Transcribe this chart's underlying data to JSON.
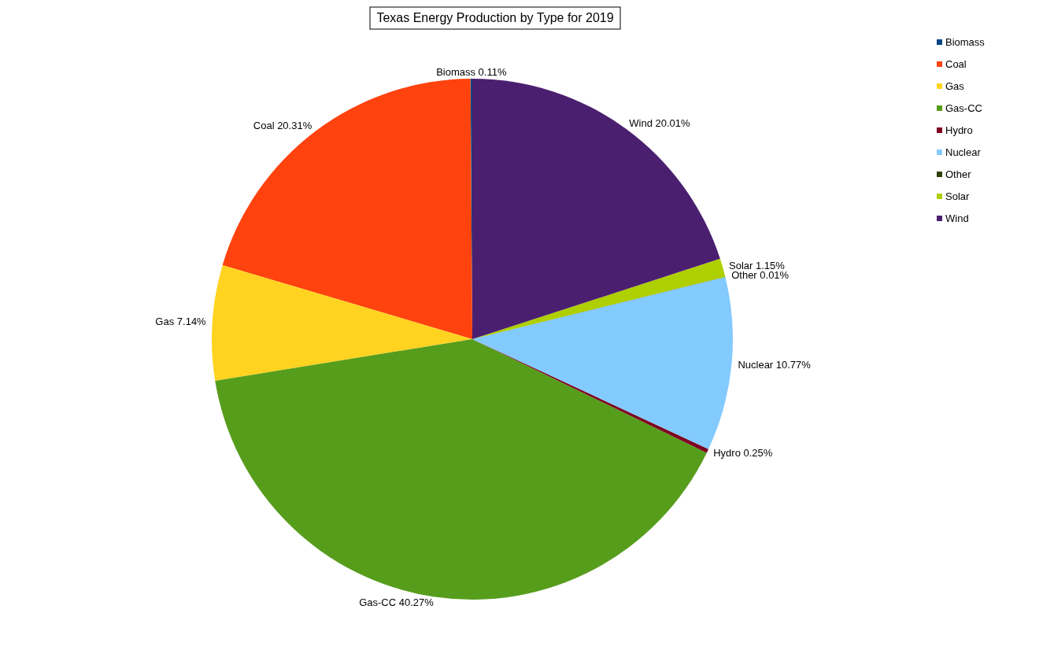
{
  "chart_data": {
    "type": "pie",
    "title": "Texas Energy Production by Type for 2019",
    "categories": [
      "Biomass",
      "Coal",
      "Gas",
      "Gas-CC",
      "Hydro",
      "Nuclear",
      "Other",
      "Solar",
      "Wind"
    ],
    "values": [
      0.11,
      20.31,
      7.14,
      40.27,
      0.25,
      10.77,
      0.01,
      1.15,
      20.01
    ],
    "colors": [
      "#004586",
      "#ff420e",
      "#ffd320",
      "#579d1c",
      "#7e0021",
      "#83caff",
      "#314004",
      "#aecf00",
      "#4b1f6f"
    ],
    "value_labels": [
      "Biomass 0.11%",
      "Coal 20.31%",
      "Gas 7.14%",
      "Gas-CC 40.27%",
      "Hydro 0.25%",
      "Nuclear 10.77%",
      "Other 0.01%",
      "Solar 1.15%",
      "Wind 20.01%"
    ],
    "legend": "top right"
  }
}
